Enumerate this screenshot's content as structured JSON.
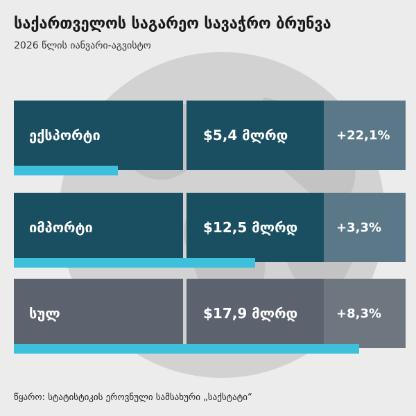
{
  "title": "საქართველოს საგარეო სავაჭრო ბრუნვა",
  "subtitle": "2026 წლის იანვარი-აგვისტო",
  "source": "წყარო: სტატისტიკის ეროვნული სამსახური „საქსტატი“",
  "colors": {
    "dark_teal": "#1a4f62",
    "teal_gray": "#5a7888",
    "dark_gray": "#5d636e",
    "light_gray": "#6e7680",
    "accent_bar": "#3cc0dc",
    "background": "#ececec"
  },
  "chart_data": {
    "type": "bar",
    "title": "საქართველოს საგარეო სავაჭრო ბრუნვა",
    "subtitle": "2026 წლის იანვარი-აგვისტო",
    "categories": [
      "ექსპორტი",
      "იმპორტი",
      "სულ"
    ],
    "values": [
      5.4,
      12.5,
      17.9
    ],
    "value_labels": [
      "$5,4 მლრდ",
      "$12,5 მლრდ",
      "$17,9 მლრდ"
    ],
    "change_labels": [
      "+22,1%",
      "+3,3%",
      "+8,3%"
    ],
    "changes_percent": [
      22.1,
      3.3,
      8.3
    ],
    "unit": "მლრდ $",
    "xlim": [
      0,
      17.9
    ],
    "grid": false,
    "legend": "none"
  },
  "rows": [
    {
      "label": "ექსპორტი",
      "value": "$5,4 მლრდ",
      "change": "+22,1%",
      "style": "teal"
    },
    {
      "label": "იმპორტი",
      "value": "$12,5 მლრდ",
      "change": "+3,3%",
      "style": "teal"
    },
    {
      "label": "სულ",
      "value": "$17,9 მლრდ",
      "change": "+8,3%",
      "style": "gray"
    }
  ]
}
